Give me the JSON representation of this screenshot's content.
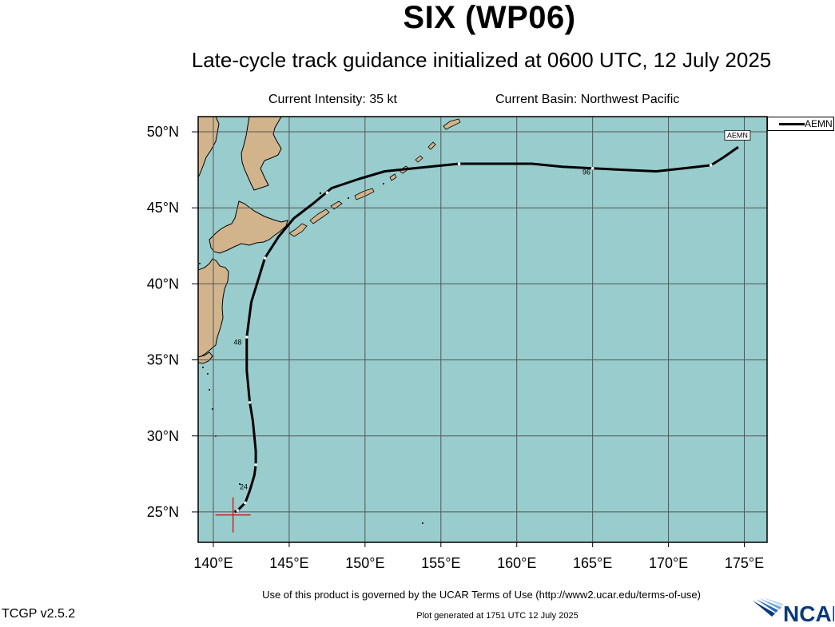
{
  "title": "SIX (WP06)",
  "subtitle": "Late-cycle track guidance initialized at 0600 UTC, 12 July 2025",
  "current_intensity": "Current Intensity: 35 kt",
  "current_basin": "Current Basin: Northwest Pacific",
  "legend": {
    "entries": [
      {
        "name": "AEMN",
        "color": "#000000"
      }
    ]
  },
  "map": {
    "lon_range": [
      139,
      176.5
    ],
    "lat_range": [
      23,
      51
    ],
    "lon_ticks": [
      {
        "value": 140,
        "label": "140°E"
      },
      {
        "value": 145,
        "label": "145°E"
      },
      {
        "value": 150,
        "label": "150°E"
      },
      {
        "value": 155,
        "label": "155°E"
      },
      {
        "value": 160,
        "label": "160°E"
      },
      {
        "value": 165,
        "label": "165°E"
      },
      {
        "value": 170,
        "label": "170°E"
      },
      {
        "value": 175,
        "label": "175°E"
      }
    ],
    "lat_ticks": [
      {
        "value": 25,
        "label": "25°N"
      },
      {
        "value": 30,
        "label": "30°N"
      },
      {
        "value": 35,
        "label": "35°N"
      },
      {
        "value": 40,
        "label": "40°N"
      },
      {
        "value": 45,
        "label": "45°N"
      },
      {
        "value": 50,
        "label": "50°N"
      }
    ],
    "ocean_color": "#99cccc",
    "land_color": "#d2b48c",
    "grid_color": "#555555"
  },
  "track": {
    "name": "AEMN",
    "color": "#000000",
    "points": [
      [
        141.4,
        25.0
      ],
      [
        141.6,
        25.1
      ],
      [
        142.1,
        25.6
      ],
      [
        142.4,
        26.4
      ],
      [
        142.7,
        27.4
      ],
      [
        142.8,
        28.1
      ],
      [
        142.8,
        29.0
      ],
      [
        142.7,
        30.0
      ],
      [
        142.6,
        31.0
      ],
      [
        142.4,
        32.2
      ],
      [
        142.2,
        34.3
      ],
      [
        142.2,
        36.5
      ],
      [
        142.5,
        38.8
      ],
      [
        143.0,
        40.4
      ],
      [
        143.4,
        41.7
      ],
      [
        144.3,
        43.1
      ],
      [
        145.3,
        44.3
      ],
      [
        146.6,
        45.3
      ],
      [
        147.8,
        46.3
      ],
      [
        149.6,
        46.9
      ],
      [
        151.3,
        47.4
      ],
      [
        153.2,
        47.6
      ],
      [
        156.2,
        47.9
      ],
      [
        159.0,
        47.9
      ],
      [
        161.0,
        47.9
      ],
      [
        163.0,
        47.7
      ],
      [
        165.0,
        47.6
      ],
      [
        167.0,
        47.5
      ],
      [
        169.2,
        47.4
      ],
      [
        171.0,
        47.6
      ],
      [
        172.8,
        47.8
      ],
      [
        173.6,
        48.3
      ],
      [
        174.6,
        49.0
      ]
    ],
    "markers": [
      [
        141.6,
        25.1
      ],
      [
        142.1,
        25.6
      ],
      [
        142.8,
        28.1
      ],
      [
        142.4,
        32.2
      ],
      [
        142.2,
        36.5
      ],
      [
        143.4,
        41.7
      ],
      [
        147.5,
        46.0
      ],
      [
        156.2,
        47.9
      ],
      [
        165.0,
        47.6
      ],
      [
        172.8,
        47.8
      ]
    ],
    "labels": [
      {
        "text": "24",
        "lon": 142.0,
        "lat": 26.5
      },
      {
        "text": "48",
        "lon": 141.6,
        "lat": 36.0
      },
      {
        "text": "96",
        "lon": 164.6,
        "lat": 47.2
      }
    ],
    "end_label": {
      "text": "AEMN",
      "lon": 174.6,
      "lat": 49.3
    }
  },
  "current_position": {
    "lon": 141.3,
    "lat": 24.8,
    "color": "#dd0000"
  },
  "terms": "Use of this product is governed by the UCAR Terms of Use (http://www2.ucar.edu/terms-of-use)",
  "version": "TCGP v2.5.2",
  "plot_generated": "Plot generated at 1751 UTC   12 July 2025",
  "logo": "NCAR"
}
